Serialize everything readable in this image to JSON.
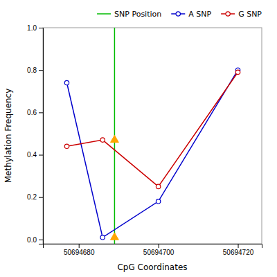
{
  "chart_data": {
    "type": "line",
    "xlabel": "CpG Coordinates",
    "ylabel": "Methylation Frequency",
    "x": [
      50694677,
      50694686,
      50694700,
      50694720
    ],
    "series": [
      {
        "name": "SNP Position",
        "type": "vline",
        "color": "#00BB00",
        "x": [
          50694689
        ]
      },
      {
        "name": "A SNP",
        "type": "line",
        "color": "#0000CC",
        "marker": "circle",
        "values": [
          0.74,
          0.01,
          0.18,
          0.8
        ]
      },
      {
        "name": "G SNP",
        "type": "line",
        "color": "#CC0000",
        "marker": "circle",
        "values": [
          0.44,
          0.47,
          0.25,
          0.79
        ]
      },
      {
        "type": "scatter",
        "color": "#FFA500",
        "marker": "triangle",
        "x": [
          50694689,
          50694689
        ],
        "values": [
          0.01,
          0.47
        ]
      }
    ],
    "xlim": [
      50694671,
      50694726
    ],
    "ylim": [
      -0.02,
      1.0
    ],
    "xticks": [
      50694680,
      50694700,
      50694720
    ],
    "yticks": [
      {
        "value": 0.0,
        "label": "0.0"
      },
      0.2,
      0.4,
      0.6,
      0.8,
      {
        "value": 1.0,
        "label": "1.0"
      }
    ],
    "legend": "upper right",
    "grid": false
  }
}
